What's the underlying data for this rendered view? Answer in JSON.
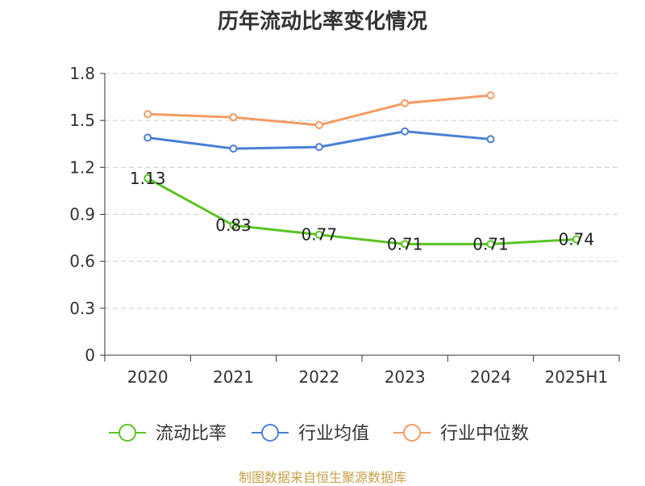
{
  "title": "历年流动比率变化情况",
  "source": "制图数据来自恒生聚源数据库",
  "chart_data": {
    "type": "line",
    "categories": [
      "2020",
      "2021",
      "2022",
      "2023",
      "2024",
      "2025H1"
    ],
    "y_ticks": [
      "0",
      "0.3",
      "0.6",
      "0.9",
      "1.2",
      "1.5",
      "1.8"
    ],
    "ylim": [
      0,
      1.8
    ],
    "grid": true,
    "legend_position": "bottom",
    "series": [
      {
        "name": "流动比率",
        "color": "#5cc324",
        "values": [
          1.13,
          0.83,
          0.77,
          0.71,
          0.71,
          0.74
        ],
        "labels": [
          "1.13",
          "0.83",
          "0.77",
          "0.71",
          "0.71",
          "0.74"
        ]
      },
      {
        "name": "行业均值",
        "color": "#4a7fd6",
        "values": [
          1.39,
          1.32,
          1.33,
          1.43,
          1.38,
          null
        ]
      },
      {
        "name": "行业中位数",
        "color": "#f59b63",
        "values": [
          1.54,
          1.52,
          1.47,
          1.61,
          1.66,
          null
        ]
      }
    ]
  }
}
